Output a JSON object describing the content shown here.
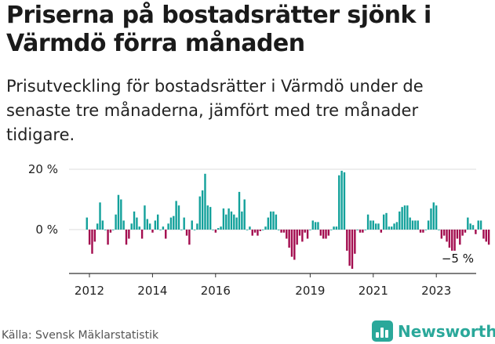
{
  "title": "Priserna på bostadsrätter sjönk i Värmdö förra månaden",
  "subtitle": "Prisutveckling för bostadsrätter i Värmdö under de senaste tre månaderna, jämfört med tre månader tidigare.",
  "source": "Källa: Svensk Mäklarstatistik",
  "brand": "Newsworthy",
  "colors": {
    "positive": "#13a19b",
    "negative": "#a30d4f",
    "brand": "#2aa89a"
  },
  "chart_data": {
    "type": "bar",
    "ylabel": "",
    "ylim": [
      -15,
      22
    ],
    "yticks": [
      {
        "value": 20,
        "label": "20 %"
      },
      {
        "value": 0,
        "label": "0 %"
      }
    ],
    "xticks": [
      {
        "value": 2012,
        "label": "2012"
      },
      {
        "value": 2014,
        "label": "2014"
      },
      {
        "value": 2016,
        "label": "2016"
      },
      {
        "value": 2019,
        "label": "2019"
      },
      {
        "value": 2021,
        "label": "2021"
      },
      {
        "value": 2023,
        "label": "2023"
      }
    ],
    "x_start": 2011.92,
    "x_step": 0.0833,
    "annotation": "−5 %",
    "values": [
      4,
      -5,
      -8,
      -4,
      2,
      9,
      3,
      0,
      -5,
      -1,
      0,
      5,
      11.5,
      10,
      3,
      -5,
      -3,
      2,
      6,
      4,
      1,
      -3,
      8,
      3.5,
      2,
      -1,
      3,
      5,
      0,
      1,
      -3,
      2,
      4,
      4.5,
      9.5,
      8,
      0,
      4,
      -2,
      -5,
      3,
      0,
      2,
      11,
      13,
      18.5,
      8,
      7.5,
      0,
      -1,
      0.5,
      1,
      7,
      5,
      7,
      6,
      5,
      4,
      12.5,
      6,
      10,
      0,
      1,
      -2,
      -1,
      -2,
      -0.5,
      0,
      1,
      4,
      6,
      6,
      5,
      0,
      -1,
      -1,
      -3,
      -6,
      -9,
      -10,
      -5,
      -2,
      -4,
      -1,
      -3,
      0,
      3,
      2.5,
      2.5,
      -2,
      -3,
      -3,
      -2,
      0,
      1,
      1,
      18,
      19.5,
      19,
      -7,
      -12,
      -13,
      -8,
      0,
      -1,
      -1,
      0,
      5,
      3,
      3,
      2,
      2,
      -1,
      5,
      5.5,
      1,
      1,
      2,
      2.5,
      6,
      7.5,
      8,
      8,
      4,
      3,
      3,
      3,
      -1,
      -1,
      0,
      3,
      7,
      9,
      8,
      0,
      -3,
      -2,
      -4,
      -6,
      -7,
      -7,
      -3,
      -5,
      -2,
      -1,
      4,
      2,
      1.5,
      -1.5,
      3,
      3,
      -3,
      -4,
      -5
    ]
  }
}
